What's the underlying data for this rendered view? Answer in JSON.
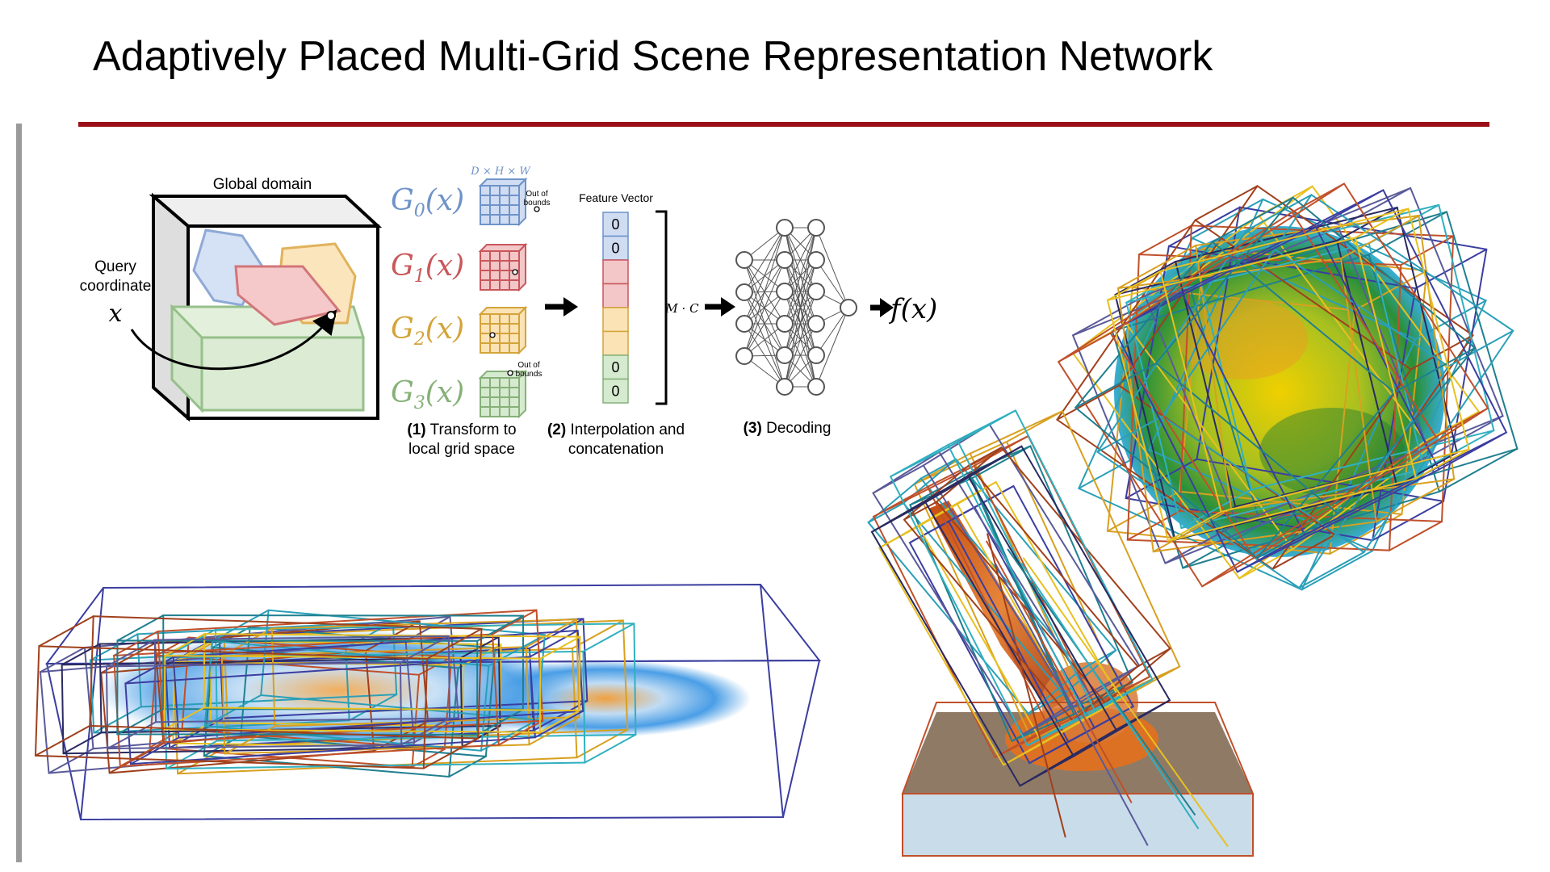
{
  "slide": {
    "title": "Adaptively Placed Multi-Grid Scene Representation Network",
    "accent_color": "#9b1018"
  },
  "pipeline": {
    "global_domain_label": "Global domain",
    "query_label_line1": "Query",
    "query_label_line2": "coordinate",
    "query_symbol": "x",
    "grid_dims_label": "D × H × W",
    "out_of_bounds_line1": "Out of",
    "out_of_bounds_line2": "bounds",
    "grids": [
      {
        "name": "G",
        "sub": "0",
        "arg": "(x)",
        "color": "#6f93c9",
        "fill": "#cfdcf2"
      },
      {
        "name": "G",
        "sub": "1",
        "arg": "(x)",
        "color": "#c9575b",
        "fill": "#f3c6c8"
      },
      {
        "name": "G",
        "sub": "2",
        "arg": "(x)",
        "color": "#d4a43b",
        "fill": "#fbe3b5"
      },
      {
        "name": "G",
        "sub": "3",
        "arg": "(x)",
        "color": "#86b178",
        "fill": "#d6ead0"
      }
    ],
    "feature_vector_label": "Feature Vector",
    "feature_cells": [
      "0",
      "0",
      "",
      "",
      "",
      "",
      "0",
      "0"
    ],
    "mc_label": "M · C",
    "output_label": "f(x)",
    "steps": [
      {
        "num": "(1)",
        "line1": "Transform to",
        "line2": "local grid space"
      },
      {
        "num": "(2)",
        "line1": "Interpolation and",
        "line2": "concatenation"
      },
      {
        "num": "(3)",
        "line1": "Decoding",
        "line2": ""
      }
    ]
  }
}
